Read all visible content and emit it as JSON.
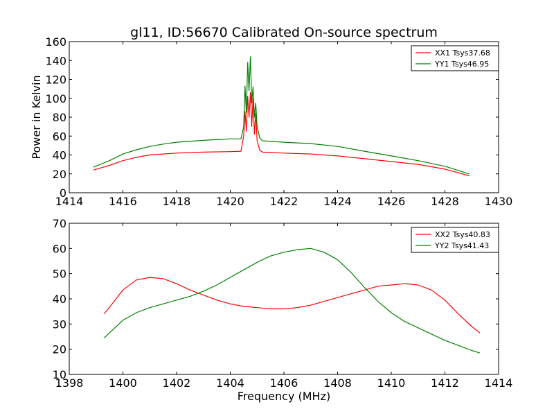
{
  "title": "gl11, ID:56670 Calibrated On-source spectrum",
  "colors": {
    "series_red": "#ff0000",
    "series_green": "#008000"
  },
  "chart_data": [
    {
      "type": "line",
      "ylabel": "Power in Kelvin",
      "xlabel": "",
      "xlim": [
        1414,
        1430
      ],
      "ylim": [
        0,
        160
      ],
      "xticks": [
        "1414",
        "1416",
        "1418",
        "1420",
        "1422",
        "1424",
        "1426",
        "1428",
        "1430"
      ],
      "yticks": [
        "0",
        "20",
        "40",
        "60",
        "80",
        "100",
        "120",
        "140",
        "160"
      ],
      "legend_position": "top-right",
      "series": [
        {
          "name": "XX1 Tsys37.68",
          "color": "#ff0000",
          "x": [
            1414.9,
            1415.5,
            1416.0,
            1416.5,
            1417.0,
            1417.5,
            1418.0,
            1419.0,
            1420.0,
            1420.4,
            1420.5,
            1420.55,
            1420.6,
            1420.65,
            1420.7,
            1420.75,
            1420.8,
            1420.85,
            1420.9,
            1420.95,
            1421.0,
            1421.1,
            1421.2,
            1422.0,
            1423.0,
            1424.0,
            1425.0,
            1426.0,
            1427.0,
            1428.0,
            1428.9
          ],
          "y": [
            24,
            29,
            34,
            37.5,
            40,
            41,
            42,
            43,
            43.5,
            44,
            60,
            86,
            65,
            102,
            80,
            106,
            70,
            100,
            62,
            84,
            55,
            45,
            43,
            42,
            41,
            39,
            36,
            33,
            30,
            25,
            18
          ]
        },
        {
          "name": "YY1 Tsys46.95",
          "color": "#008000",
          "x": [
            1414.9,
            1415.5,
            1416.0,
            1416.5,
            1417.0,
            1417.5,
            1418.0,
            1419.0,
            1420.0,
            1420.4,
            1420.5,
            1420.55,
            1420.6,
            1420.65,
            1420.7,
            1420.75,
            1420.8,
            1420.85,
            1420.9,
            1420.95,
            1421.0,
            1421.1,
            1421.2,
            1422.0,
            1423.0,
            1424.0,
            1425.0,
            1426.0,
            1427.0,
            1428.0,
            1428.9
          ],
          "y": [
            27,
            34,
            41,
            45.5,
            49,
            51.5,
            53.5,
            55.5,
            57,
            57,
            70,
            113,
            85,
            138,
            108,
            144,
            95,
            112,
            80,
            95,
            70,
            58,
            55,
            53.5,
            52,
            49,
            44,
            39,
            34,
            28,
            20
          ]
        }
      ]
    },
    {
      "type": "line",
      "xlabel": "Frequency (MHz)",
      "ylabel": "",
      "xlim": [
        1398,
        1414
      ],
      "ylim": [
        10,
        70
      ],
      "xticks": [
        "1398",
        "1400",
        "1402",
        "1404",
        "1406",
        "1408",
        "1410",
        "1412",
        "1414"
      ],
      "yticks": [
        "10",
        "20",
        "30",
        "40",
        "50",
        "60",
        "70"
      ],
      "legend_position": "top-right",
      "series": [
        {
          "name": "XX2 Tsys40.83",
          "color": "#ff0000",
          "x": [
            1399.3,
            1399.6,
            1400.0,
            1400.5,
            1401.0,
            1401.5,
            1402.0,
            1402.5,
            1403.0,
            1403.5,
            1404.0,
            1404.5,
            1405.0,
            1405.5,
            1406.0,
            1406.5,
            1407.0,
            1407.5,
            1408.0,
            1408.5,
            1409.0,
            1409.5,
            1410.0,
            1410.5,
            1411.0,
            1411.5,
            1412.0,
            1412.5,
            1413.0,
            1413.3
          ],
          "y": [
            34,
            38,
            43.5,
            47.5,
            48.5,
            48,
            46,
            43.5,
            41.5,
            39.5,
            38,
            37,
            36.5,
            36,
            36,
            36.5,
            37.5,
            39,
            40.5,
            42,
            43.5,
            45,
            45.5,
            46,
            45.5,
            43.5,
            39.5,
            34,
            29,
            26.5
          ]
        },
        {
          "name": "YY2 Tsys41.43",
          "color": "#008000",
          "x": [
            1399.3,
            1399.6,
            1400.0,
            1400.5,
            1401.0,
            1401.5,
            1402.0,
            1402.5,
            1403.0,
            1403.5,
            1404.0,
            1404.5,
            1405.0,
            1405.5,
            1406.0,
            1406.5,
            1407.0,
            1407.5,
            1408.0,
            1408.5,
            1409.0,
            1409.5,
            1410.0,
            1410.5,
            1411.0,
            1411.5,
            1412.0,
            1412.5,
            1413.0,
            1413.3
          ],
          "y": [
            24.5,
            27.5,
            31.5,
            34.5,
            36.5,
            38,
            39.5,
            41,
            43,
            45.5,
            48.5,
            51.5,
            54.5,
            57,
            58.5,
            59.5,
            60,
            58.5,
            55.5,
            50.5,
            44.5,
            39,
            34.5,
            31,
            28.5,
            26,
            23.5,
            21.5,
            19.5,
            18.5
          ]
        }
      ]
    }
  ]
}
